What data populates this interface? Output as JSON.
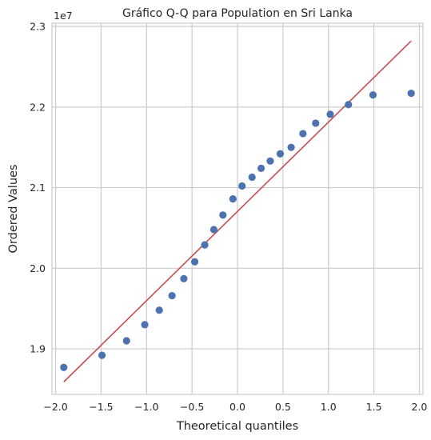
{
  "chart_data": {
    "type": "scatter",
    "title": "Gráfico Q-Q para Population en Sri Lanka",
    "xlabel": "Theoretical quantiles",
    "ylabel": "Ordered Values",
    "y_offset_text": "1e7",
    "xlim": [
      -2.04,
      2.04
    ],
    "ylim": [
      1.8435,
      2.304
    ],
    "x_ticks": [
      -2.0,
      -1.5,
      -1.0,
      -0.5,
      0.0,
      0.5,
      1.0,
      1.5,
      2.0
    ],
    "x_tick_labels": [
      "−2.0",
      "−1.5",
      "−1.0",
      "−0.5",
      "0.0",
      "0.5",
      "1.0",
      "1.5",
      "2.0"
    ],
    "y_ticks": [
      1.9,
      2.0,
      2.1,
      2.2,
      2.3
    ],
    "y_tick_labels": [
      "1.9",
      "2.0",
      "2.1",
      "2.2",
      "2.3"
    ],
    "grid": true,
    "series": [
      {
        "name": "Ordered Values",
        "kind": "scatter",
        "color": "#4c72b0",
        "points": [
          [
            -1.91,
            1.877
          ],
          [
            -1.49,
            1.892
          ],
          [
            -1.22,
            1.91
          ],
          [
            -1.02,
            1.93
          ],
          [
            -0.86,
            1.948
          ],
          [
            -0.72,
            1.966
          ],
          [
            -0.59,
            1.987
          ],
          [
            -0.47,
            2.008
          ],
          [
            -0.36,
            2.029
          ],
          [
            -0.26,
            2.048
          ],
          [
            -0.16,
            2.066
          ],
          [
            -0.05,
            2.086
          ],
          [
            0.05,
            2.102
          ],
          [
            0.16,
            2.113
          ],
          [
            0.26,
            2.124
          ],
          [
            0.36,
            2.133
          ],
          [
            0.47,
            2.142
          ],
          [
            0.59,
            2.15
          ],
          [
            0.72,
            2.167
          ],
          [
            0.86,
            2.18
          ],
          [
            1.02,
            2.191
          ],
          [
            1.22,
            2.203
          ],
          [
            1.49,
            2.215
          ],
          [
            1.91,
            2.217
          ]
        ]
      },
      {
        "name": "Reference line",
        "kind": "line",
        "color": "#c44e52",
        "points": [
          [
            -1.91,
            1.859
          ],
          [
            1.91,
            2.282
          ]
        ]
      }
    ]
  }
}
